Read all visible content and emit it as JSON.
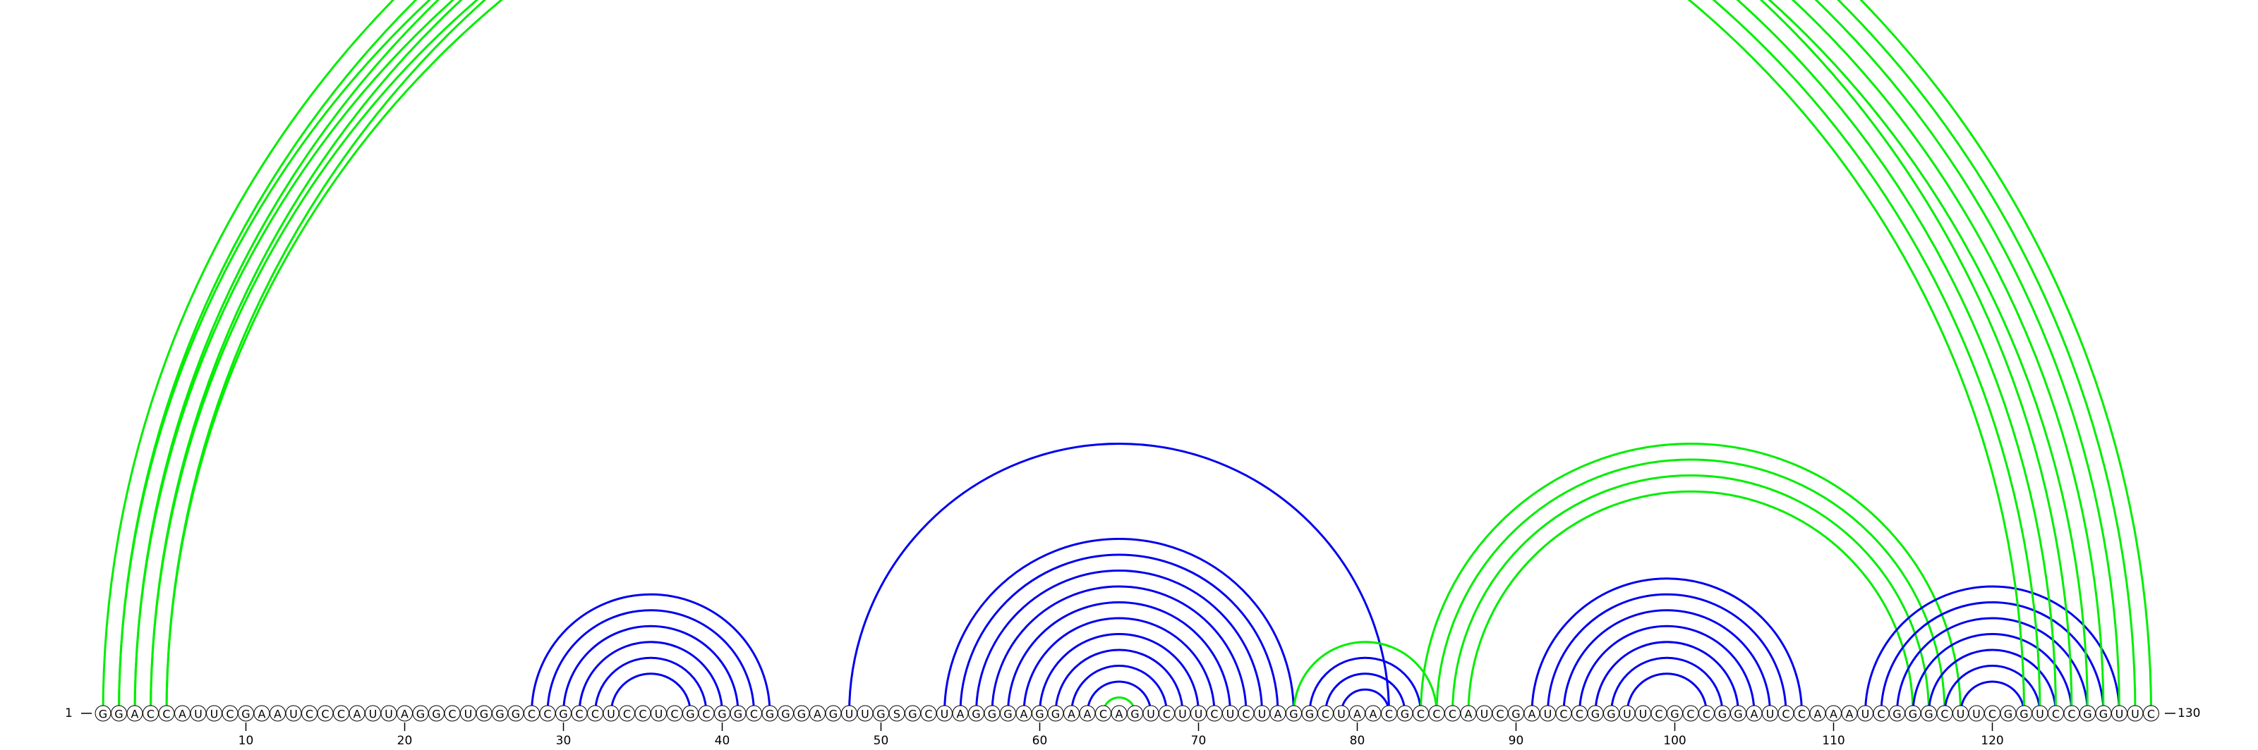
{
  "sequence": "GGACCAUUCGAAUCCCAUUAGGCUGGGCCGCCUCCUCGCGGCGGGAGUUGSGCUAGGGAGGAACAGUCUUCUCUAGGCUAACGCCCAUCGAUCCGGUUCGCCGGAUCCAAAUCGGGCUUCGGUCCGGUUC",
  "start_label": "1",
  "end_label": "130",
  "tick_labels": [
    "10",
    "20",
    "30",
    "40",
    "50",
    "60",
    "70",
    "80",
    "90",
    "100",
    "110",
    "120"
  ],
  "colors": {
    "blue_arc": "#0000ee",
    "green_arc": "#00ee00",
    "nucleotide_fill": "#ffffff",
    "nucleotide_stroke": "#000000",
    "text": "#000000"
  },
  "arc_groups": [
    {
      "name": "stem-28-43",
      "color": "blue",
      "i": [
        28,
        29,
        30,
        31,
        32,
        33
      ],
      "j": [
        43,
        42,
        41,
        40,
        39,
        38
      ]
    },
    {
      "name": "stem-48-82",
      "color": "blue",
      "i": [
        48
      ],
      "j": [
        82
      ]
    },
    {
      "name": "stem-54-76",
      "color": "blue",
      "i": [
        54,
        55,
        56,
        57,
        58,
        59,
        60,
        61,
        62,
        63
      ],
      "j": [
        76,
        75,
        74,
        73,
        72,
        71,
        70,
        69,
        68,
        67
      ]
    },
    {
      "name": "loop-64-66",
      "color": "green",
      "i": [
        64
      ],
      "j": [
        66
      ]
    },
    {
      "name": "stem-77-84",
      "color": "blue",
      "i": [
        77,
        78,
        79
      ],
      "j": [
        84,
        83,
        82
      ]
    },
    {
      "name": "stem-76-85",
      "color": "green",
      "i": [
        76
      ],
      "j": [
        85
      ]
    },
    {
      "name": "stem-84-118",
      "color": "green",
      "i": [
        84,
        85,
        86,
        87
      ],
      "j": [
        118,
        117,
        116,
        115
      ]
    },
    {
      "name": "stem-91-108",
      "color": "blue",
      "i": [
        91,
        92,
        93,
        94,
        95,
        96,
        97
      ],
      "j": [
        108,
        107,
        106,
        105,
        104,
        103,
        102
      ]
    },
    {
      "name": "stem-112-128",
      "color": "blue",
      "i": [
        112,
        113,
        114,
        115,
        116,
        117,
        118
      ],
      "j": [
        128,
        127,
        126,
        125,
        124,
        123,
        122
      ]
    },
    {
      "name": "pseudoknot-1-130",
      "color": "green",
      "i": [
        1,
        2,
        3,
        4,
        5
      ],
      "j": [
        130,
        129,
        128,
        127,
        126
      ]
    },
    {
      "name": "pseudoknot-2-125",
      "color": "green",
      "i": [
        2,
        3,
        4,
        5
      ],
      "j": [
        125,
        124,
        123,
        122
      ]
    }
  ]
}
